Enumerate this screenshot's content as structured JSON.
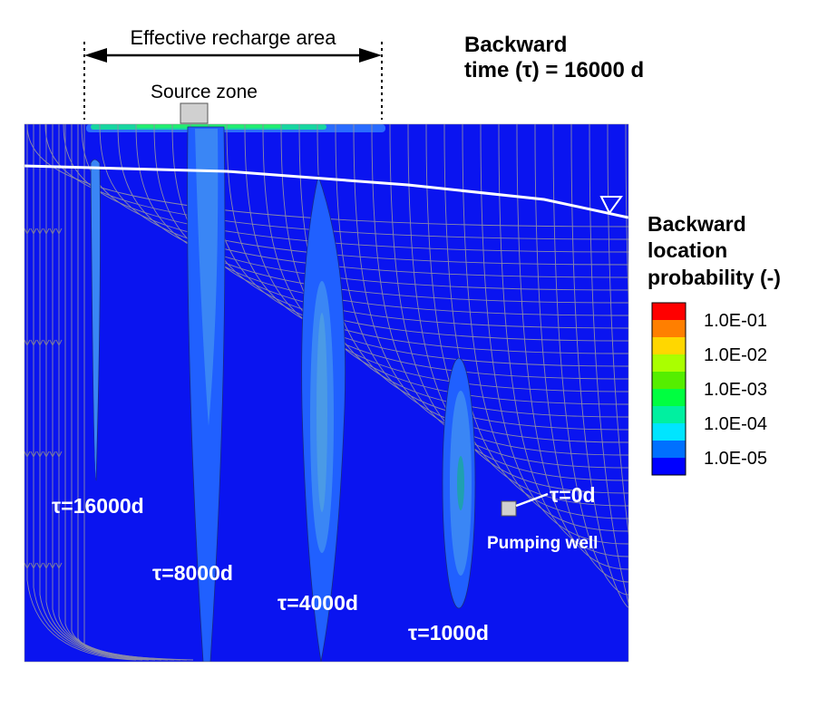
{
  "header": {
    "recharge_label": "Effective recharge area",
    "source_label": "Source zone",
    "title_line1": "Backward",
    "title_line2": "time (τ) = 16000 d"
  },
  "legend": {
    "title_line1": "Backward",
    "title_line2": "location",
    "title_line3": "probability (-)",
    "colors": [
      "#ff0000",
      "#ff7f00",
      "#ffd700",
      "#aaff00",
      "#55ee00",
      "#00ff40",
      "#00f0a0",
      "#00e5ff",
      "#0070ff",
      "#0000ff"
    ],
    "ticks": [
      "1.0E-01",
      "1.0E-02",
      "1.0E-03",
      "1.0E-04",
      "1.0E-05"
    ]
  },
  "plumes": [
    {
      "label": "τ=16000d"
    },
    {
      "label": "τ=8000d"
    },
    {
      "label": "τ=4000d"
    },
    {
      "label": "τ=1000d"
    }
  ],
  "well": {
    "time_label": "τ=0d",
    "name_label": "Pumping well"
  },
  "colors": {
    "domain_fill": "#0a14f0",
    "plume_outer": "#2060ff",
    "plume_inner": "#3a86f5",
    "streamline": "#8a8aa8",
    "water_table": "#ffffff"
  }
}
